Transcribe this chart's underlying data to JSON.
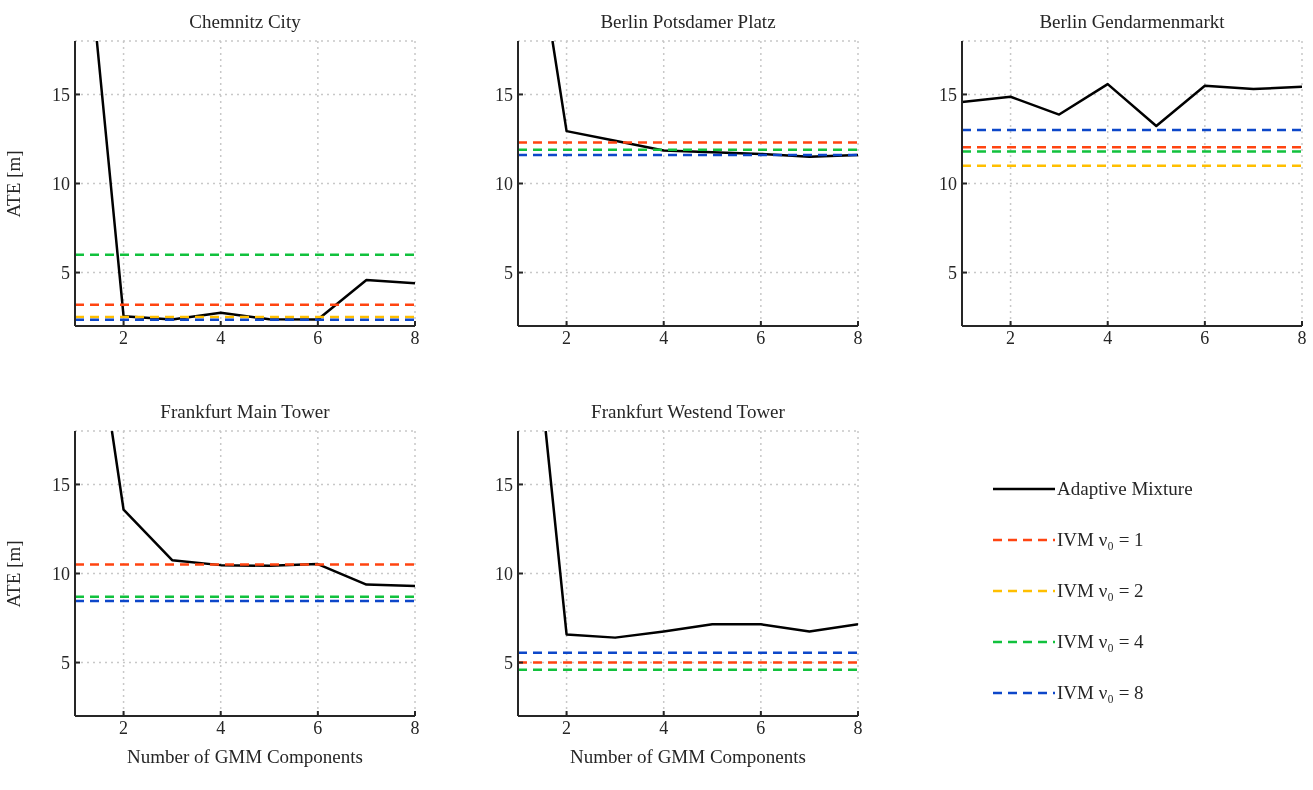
{
  "chart_data": [
    {
      "type": "line",
      "title": "Chemnitz City",
      "ylabel": "ATE [m]",
      "xlim": [
        1,
        8
      ],
      "xticks": [
        2,
        4,
        6,
        8
      ],
      "ylim": [
        2,
        18
      ],
      "yticks": [
        5,
        10,
        15
      ],
      "grid": true,
      "legend": "right",
      "series": [
        {
          "name": "Adaptive Mixture",
          "color": "#000000",
          "line_style": "solid",
          "x": [
            1.45,
            2,
            3,
            4,
            5,
            6,
            7,
            8
          ],
          "values": [
            18,
            2.55,
            2.36,
            2.75,
            2.38,
            2.36,
            4.58,
            4.4
          ]
        },
        {
          "name": "IVM ν₀ = 1",
          "color": "#ff4411",
          "line_style": "dashed",
          "x": [
            1,
            8
          ],
          "values": [
            3.2,
            3.2
          ]
        },
        {
          "name": "IVM ν₀ = 2",
          "color": "#ffbf00",
          "line_style": "dashed",
          "x": [
            1,
            8
          ],
          "values": [
            2.5,
            2.5
          ]
        },
        {
          "name": "IVM ν₀ = 4",
          "color": "#11c13d",
          "line_style": "dashed",
          "x": [
            1,
            8
          ],
          "values": [
            6.0,
            6.0
          ]
        },
        {
          "name": "IVM ν₀ = 8",
          "color": "#0d47c9",
          "line_style": "dashed",
          "x": [
            1,
            8
          ],
          "values": [
            2.35,
            2.35
          ]
        }
      ]
    },
    {
      "type": "line",
      "title": "Berlin Potsdamer Platz",
      "xlim": [
        1,
        8
      ],
      "xticks": [
        2,
        4,
        6,
        8
      ],
      "ylim": [
        2,
        18
      ],
      "yticks": [
        5,
        10,
        15
      ],
      "grid": true,
      "series": [
        {
          "color": "#000000",
          "line_style": "solid",
          "x": [
            1.71,
            2,
            3,
            4,
            5,
            6,
            7,
            8
          ],
          "values": [
            18,
            12.94,
            12.4,
            11.85,
            11.75,
            11.66,
            11.5,
            11.6
          ]
        },
        {
          "color": "#ff4411",
          "line_style": "dashed",
          "x": [
            1,
            8
          ],
          "values": [
            12.3,
            12.3
          ]
        },
        {
          "color": "#11c13d",
          "line_style": "dashed",
          "x": [
            1,
            8
          ],
          "values": [
            11.9,
            11.9
          ]
        },
        {
          "color": "#0d47c9",
          "line_style": "dashed",
          "x": [
            1,
            8
          ],
          "values": [
            11.6,
            11.6
          ]
        }
      ]
    },
    {
      "type": "line",
      "title": "Berlin Gendarmenmarkt",
      "xlim": [
        1,
        8
      ],
      "xticks": [
        2,
        4,
        6,
        8
      ],
      "ylim": [
        2,
        18
      ],
      "yticks": [
        5,
        10,
        15
      ],
      "grid": true,
      "series": [
        {
          "color": "#000000",
          "line_style": "solid",
          "x": [
            1,
            2,
            3,
            4,
            5,
            6,
            7,
            8
          ],
          "values": [
            14.58,
            14.87,
            13.87,
            15.58,
            13.23,
            15.49,
            15.3,
            15.43
          ]
        },
        {
          "color": "#ff4411",
          "line_style": "dashed",
          "x": [
            1,
            8
          ],
          "values": [
            12.04,
            12.04
          ]
        },
        {
          "color": "#ffbf00",
          "line_style": "dashed",
          "x": [
            1,
            8
          ],
          "values": [
            11.0,
            11.0
          ]
        },
        {
          "color": "#11c13d",
          "line_style": "dashed",
          "x": [
            1,
            8
          ],
          "values": [
            11.8,
            11.8
          ]
        },
        {
          "color": "#0d47c9",
          "line_style": "dashed",
          "x": [
            1,
            8
          ],
          "values": [
            13.0,
            13.0
          ]
        }
      ]
    },
    {
      "type": "line",
      "title": "Frankfurt Main Tower",
      "xlabel": "Number of GMM Components",
      "ylabel": "ATE [m]",
      "xlim": [
        1,
        8
      ],
      "xticks": [
        2,
        4,
        6,
        8
      ],
      "ylim": [
        2,
        18
      ],
      "yticks": [
        5,
        10,
        15
      ],
      "grid": true,
      "series": [
        {
          "color": "#000000",
          "line_style": "solid",
          "x": [
            1.76,
            2,
            3,
            4,
            5,
            6,
            7,
            8
          ],
          "values": [
            18,
            13.58,
            10.75,
            10.47,
            10.43,
            10.53,
            9.38,
            9.3
          ]
        },
        {
          "color": "#ff4411",
          "line_style": "dashed",
          "x": [
            1,
            8
          ],
          "values": [
            10.5,
            10.5
          ]
        },
        {
          "color": "#11c13d",
          "line_style": "dashed",
          "x": [
            1,
            8
          ],
          "values": [
            8.7,
            8.7
          ]
        },
        {
          "color": "#0d47c9",
          "line_style": "dashed",
          "x": [
            1,
            8
          ],
          "values": [
            8.45,
            8.45
          ]
        }
      ]
    },
    {
      "type": "line",
      "title": "Frankfurt Westend Tower",
      "xlabel": "Number of GMM Components",
      "xlim": [
        1,
        8
      ],
      "xticks": [
        2,
        4,
        6,
        8
      ],
      "ylim": [
        2,
        18
      ],
      "yticks": [
        5,
        10,
        15
      ],
      "grid": true,
      "series": [
        {
          "color": "#000000",
          "line_style": "solid",
          "x": [
            1.57,
            2,
            3,
            4,
            5,
            6,
            7,
            8
          ],
          "values": [
            18,
            6.58,
            6.4,
            6.75,
            7.15,
            7.15,
            6.75,
            7.15
          ]
        },
        {
          "color": "#ff4411",
          "line_style": "dashed",
          "x": [
            1,
            8
          ],
          "values": [
            5.0,
            5.0
          ]
        },
        {
          "color": "#11c13d",
          "line_style": "dashed",
          "x": [
            1,
            8
          ],
          "values": [
            4.6,
            4.6
          ]
        },
        {
          "color": "#0d47c9",
          "line_style": "dashed",
          "x": [
            1,
            8
          ],
          "values": [
            5.55,
            5.55
          ]
        }
      ]
    }
  ]
}
